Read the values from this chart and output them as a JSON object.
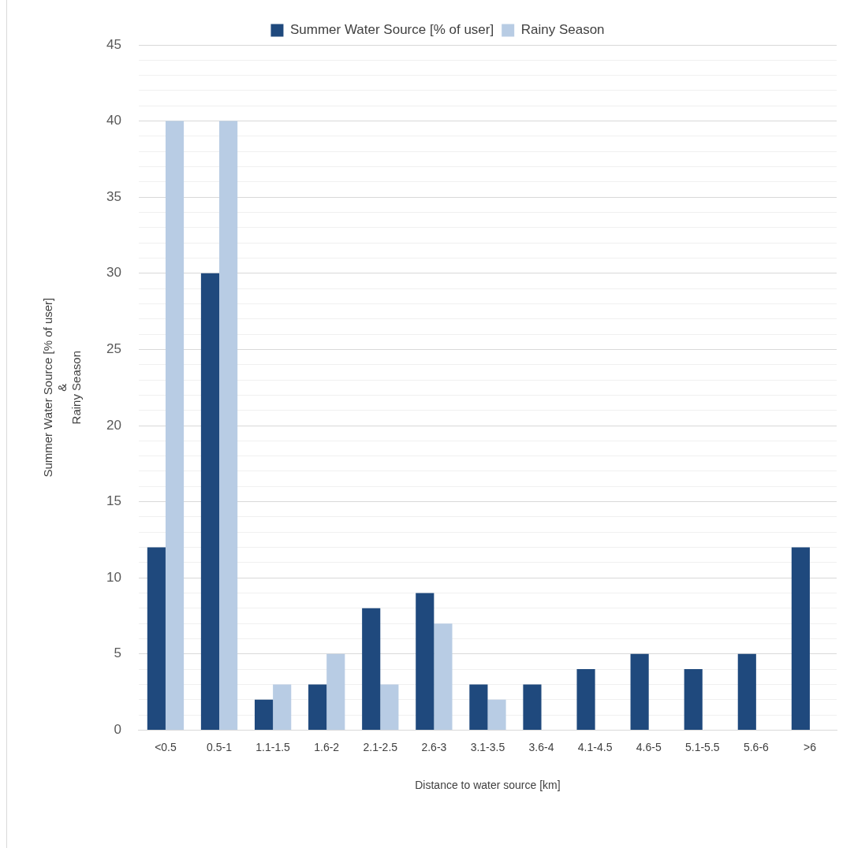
{
  "chart_data": {
    "type": "bar",
    "xlabel": "Distance to water source [km]",
    "ylabel": "Summer Water Source [% of user]\n&\nRainy Season",
    "categories": [
      "<0.5",
      "0.5-1",
      "1.1-1.5",
      "1.6-2",
      "2.1-2.5",
      "2.6-3",
      "3.1-3.5",
      "3.6-4",
      "4.1-4.5",
      "4.6-5",
      "5.1-5.5",
      "5.6-6",
      ">6"
    ],
    "series": [
      {
        "name": "Summer Water Source [% of user]",
        "color": "#1f497d",
        "values": [
          12,
          30,
          2,
          3,
          8,
          9,
          3,
          3,
          4,
          5,
          4,
          5,
          12
        ]
      },
      {
        "name": "Rainy Season",
        "color": "#b8cce4",
        "values": [
          40,
          40,
          3,
          5,
          3,
          7,
          2,
          0,
          0,
          0,
          0,
          0,
          0
        ]
      }
    ],
    "ylim": [
      0,
      45
    ],
    "yticks": [
      0,
      {
        "value": 1,
        "label": null
      },
      {
        "value": 2,
        "label": null
      },
      {
        "value": 3,
        "label": null
      },
      {
        "value": 4,
        "label": null
      },
      5,
      {
        "value": 6,
        "label": null
      },
      {
        "value": 7,
        "label": null
      },
      {
        "value": 8,
        "label": null
      },
      {
        "value": 9,
        "label": null
      },
      10,
      {
        "value": 11,
        "label": null
      },
      {
        "value": 12,
        "label": null
      },
      {
        "value": 13,
        "label": null
      },
      {
        "value": 14,
        "label": null
      },
      15,
      {
        "value": 16,
        "label": null
      },
      {
        "value": 17,
        "label": null
      },
      {
        "value": 18,
        "label": null
      },
      {
        "value": 19,
        "label": null
      },
      20,
      {
        "value": 21,
        "label": null
      },
      {
        "value": 22,
        "label": null
      },
      {
        "value": 23,
        "label": null
      },
      {
        "value": 24,
        "label": null
      },
      25,
      {
        "value": 26,
        "label": null
      },
      {
        "value": 27,
        "label": null
      },
      {
        "value": 28,
        "label": null
      },
      {
        "value": 29,
        "label": null
      },
      30,
      {
        "value": 31,
        "label": null
      },
      {
        "value": 32,
        "label": null
      },
      {
        "value": 33,
        "label": null
      },
      {
        "value": 34,
        "label": null
      },
      35,
      {
        "value": 36,
        "label": null
      },
      {
        "value": 37,
        "label": null
      },
      {
        "value": 38,
        "label": null
      },
      {
        "value": 39,
        "label": null
      },
      40,
      {
        "value": 41,
        "label": null
      },
      {
        "value": 42,
        "label": null
      },
      {
        "value": 43,
        "label": null
      },
      {
        "value": 44,
        "label": null
      },
      45
    ],
    "grid": "y",
    "legend": "top"
  }
}
